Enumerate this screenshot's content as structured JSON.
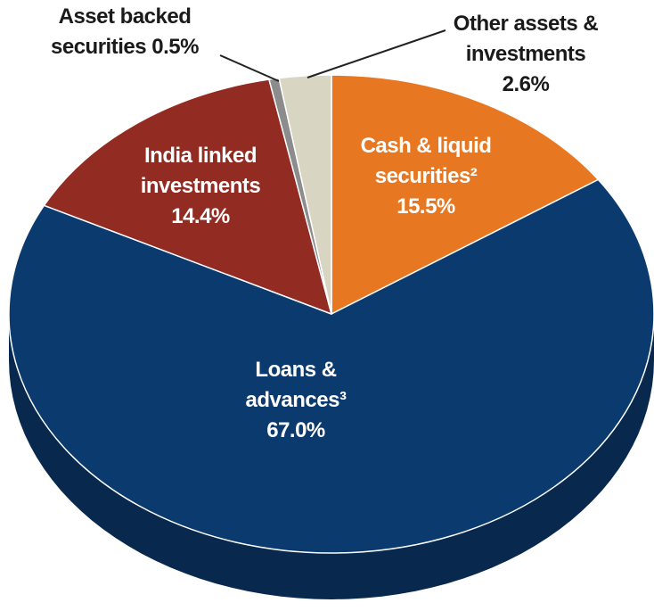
{
  "chart_data": {
    "type": "pie",
    "categories": [
      "Cash & liquid securities²",
      "Loans & advances³",
      "India linked investments",
      "Asset backed securities",
      "Other assets & investments"
    ],
    "values": [
      15.5,
      67.0,
      14.4,
      0.5,
      2.6
    ],
    "value_labels": [
      "15.5%",
      "67.0%",
      "14.4%",
      "0.5%",
      "2.6%"
    ],
    "colors": [
      "#e87722",
      "#0b3a6e",
      "#922b21",
      "#8c8c8c",
      "#d9d5c3"
    ]
  }
}
